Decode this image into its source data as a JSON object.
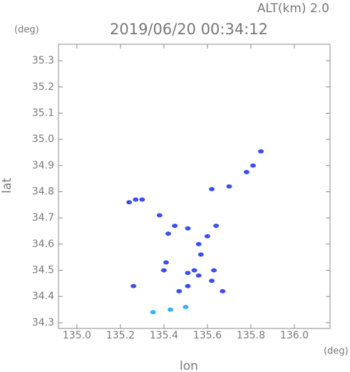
{
  "chart_data": {
    "type": "scatter",
    "title": "2019/06/20 00:34:12",
    "subtitle": "ALT(km) 2.0",
    "y_unit": "(deg)",
    "x_unit": "(deg)",
    "x_label": "lon",
    "y_label": "lat",
    "xlim": [
      134.915,
      136.164
    ],
    "ylim": [
      34.278,
      35.363
    ],
    "xticks": [
      {
        "value": 135.0,
        "label": "135.0"
      },
      135.2,
      135.4,
      135.6,
      135.8,
      {
        "value": 136.0,
        "label": "136.0"
      }
    ],
    "yticks": [
      34.3,
      34.4,
      34.5,
      34.6,
      34.7,
      34.8,
      34.9,
      {
        "value": 35.0,
        "label": "35.0"
      },
      35.1,
      35.2,
      35.3
    ],
    "series": [
      {
        "color": "#3b4ff0",
        "x": [
          135.846,
          135.81,
          135.78,
          135.62,
          135.7,
          135.24,
          135.27,
          135.3,
          135.38,
          135.42,
          135.45,
          135.51,
          135.64,
          135.6,
          135.56,
          135.57,
          135.41,
          135.4,
          135.54,
          135.51,
          135.56,
          135.63,
          135.62,
          135.51,
          135.26,
          135.47,
          135.67
        ],
        "y": [
          34.954,
          34.9,
          34.875,
          34.81,
          34.82,
          34.76,
          34.77,
          34.77,
          34.71,
          34.64,
          34.67,
          34.66,
          34.67,
          34.63,
          34.6,
          34.56,
          34.53,
          34.5,
          34.5,
          34.49,
          34.48,
          34.5,
          34.46,
          34.44,
          34.44,
          34.42,
          34.42
        ]
      },
      {
        "color": "#33b5ee",
        "x": [
          135.35,
          135.43,
          135.5
        ],
        "y": [
          34.34,
          34.35,
          34.36
        ]
      }
    ]
  }
}
